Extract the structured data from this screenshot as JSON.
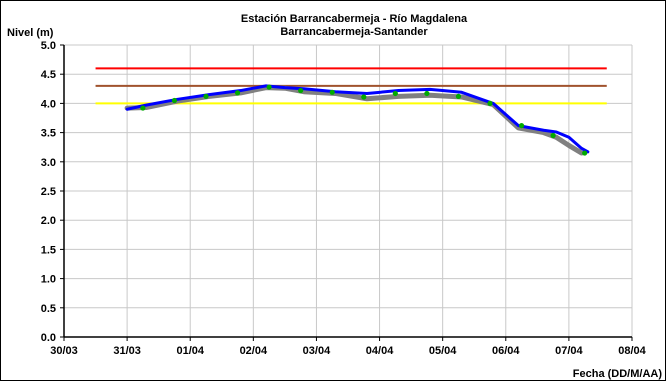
{
  "chart_data": {
    "type": "line",
    "title_lines": [
      "Estación Barrancabermeja - Río Magdalena",
      "Barrancabermeja-Santander"
    ],
    "xlabel": "Fecha (DD/M/AA)",
    "ylabel": "Nivel (m)",
    "x_tick_labels": [
      "30/03",
      "31/03",
      "01/04",
      "02/04",
      "03/04",
      "04/04",
      "05/04",
      "06/04",
      "07/04",
      "08/04"
    ],
    "y_tick_labels": [
      "0.0",
      "0.5",
      "1.0",
      "1.5",
      "2.0",
      "2.5",
      "3.0",
      "3.5",
      "4.0",
      "4.5",
      "5.0"
    ],
    "xlim": [
      0,
      9
    ],
    "ylim": [
      0,
      5
    ],
    "grid": true,
    "legend": "none",
    "threshold_lines": [
      {
        "value": 4.6,
        "x_range": [
          0.5,
          8.6
        ],
        "color": "#ff0000"
      },
      {
        "value": 4.3,
        "x_range": [
          0.5,
          8.6
        ],
        "color": "#a0522d"
      },
      {
        "value": 4.0,
        "x_range": [
          0.5,
          8.6
        ],
        "color": "#ffff00"
      }
    ],
    "series": [
      {
        "style": "gray-band",
        "color": "#808080",
        "x": [
          1.0,
          1.3,
          1.8,
          2.3,
          2.8,
          3.2,
          3.5,
          3.8,
          4.3,
          4.8,
          5.3,
          5.8,
          6.3,
          6.8,
          7.2,
          7.6,
          7.8,
          8.0,
          8.2
        ],
        "values": [
          3.92,
          3.93,
          4.04,
          4.12,
          4.18,
          4.27,
          4.26,
          4.2,
          4.17,
          4.08,
          4.12,
          4.14,
          4.11,
          3.98,
          3.58,
          3.5,
          3.42,
          3.28,
          3.15
        ]
      },
      {
        "style": "blue-line",
        "color": "#0000ff",
        "x": [
          1.0,
          1.3,
          1.8,
          2.3,
          2.8,
          3.2,
          3.5,
          3.8,
          4.3,
          4.8,
          5.3,
          5.8,
          6.3,
          6.8,
          7.2,
          7.6,
          7.8,
          8.0,
          8.2,
          8.3
        ],
        "values": [
          3.9,
          3.97,
          4.07,
          4.15,
          4.22,
          4.3,
          4.27,
          4.25,
          4.2,
          4.17,
          4.22,
          4.24,
          4.19,
          4.0,
          3.62,
          3.54,
          3.51,
          3.42,
          3.23,
          3.17
        ]
      },
      {
        "style": "green-markers",
        "color": "#00aa00",
        "x": [
          1.25,
          1.75,
          2.25,
          2.75,
          3.25,
          3.75,
          4.25,
          4.75,
          5.25,
          5.75,
          6.25,
          6.75,
          7.25,
          7.75,
          8.25
        ],
        "values": [
          3.92,
          4.05,
          4.12,
          4.18,
          4.28,
          4.22,
          4.19,
          4.11,
          4.17,
          4.17,
          4.12,
          4.0,
          3.62,
          3.45,
          3.15
        ]
      }
    ]
  }
}
